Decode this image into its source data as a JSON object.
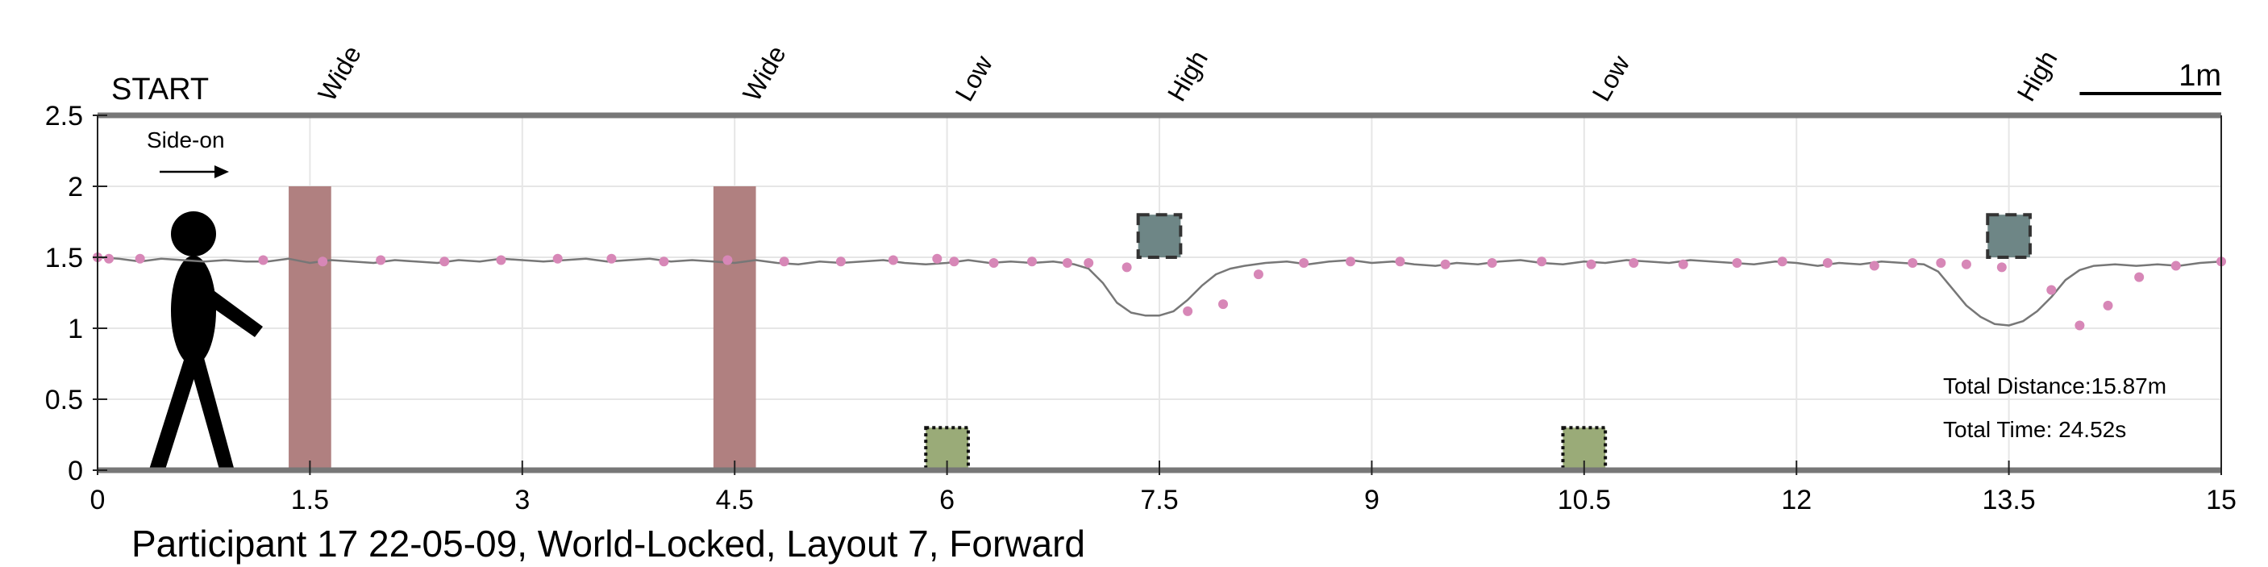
{
  "chart_data": {
    "type": "line",
    "caption": "Participant 17 22-05-09, World-Locked, Layout 7, Forward",
    "start_label": "START",
    "direction_label": "Side-on",
    "scale_bar_label": "1m",
    "scale_bar_length": 1,
    "xlim": [
      0,
      15
    ],
    "ylim": [
      0,
      2.5
    ],
    "xticks": [
      0,
      1.5,
      3,
      4.5,
      6,
      7.5,
      9,
      10.5,
      12,
      13.5,
      15
    ],
    "xtick_labels": [
      "0",
      "1.5",
      "3",
      "4.5",
      "6",
      "7.5",
      "9",
      "10.5",
      "12",
      "13.5",
      "15"
    ],
    "yticks": [
      0,
      0.5,
      1,
      1.5,
      2,
      2.5
    ],
    "ytick_labels": [
      "0",
      "0.5",
      "1",
      "1.5",
      "2",
      "2.5"
    ],
    "grid": true,
    "obstacle_labels": [
      {
        "x": 1.5,
        "text": "Wide"
      },
      {
        "x": 4.5,
        "text": "Wide"
      },
      {
        "x": 6.0,
        "text": "Low"
      },
      {
        "x": 7.5,
        "text": "High"
      },
      {
        "x": 10.5,
        "text": "Low"
      },
      {
        "x": 13.5,
        "text": "High"
      }
    ],
    "obstacles": [
      {
        "kind": "wide",
        "x0": 1.35,
        "x1": 1.65,
        "y0": 0,
        "y1": 2.0,
        "color": "#b08080"
      },
      {
        "kind": "wide",
        "x0": 4.35,
        "x1": 4.65,
        "y0": 0,
        "y1": 2.0,
        "color": "#b08080"
      },
      {
        "kind": "low",
        "x0": 5.85,
        "x1": 6.15,
        "y0": 0,
        "y1": 0.3,
        "color": "#9aab78"
      },
      {
        "kind": "high",
        "x0": 7.35,
        "x1": 7.65,
        "y0": 1.5,
        "y1": 1.8,
        "color": "#6e8686"
      },
      {
        "kind": "low",
        "x0": 10.35,
        "x1": 10.65,
        "y0": 0,
        "y1": 0.3,
        "color": "#9aab78"
      },
      {
        "kind": "high",
        "x0": 13.35,
        "x1": 13.65,
        "y0": 1.5,
        "y1": 1.8,
        "color": "#6e8686"
      }
    ],
    "series": [
      {
        "color": "#777777",
        "x": [
          0.0,
          0.15,
          0.3,
          0.45,
          0.6,
          0.75,
          0.9,
          1.05,
          1.2,
          1.35,
          1.5,
          1.65,
          1.8,
          1.95,
          2.1,
          2.25,
          2.4,
          2.55,
          2.7,
          2.85,
          3.0,
          3.15,
          3.3,
          3.45,
          3.6,
          3.75,
          3.9,
          4.05,
          4.2,
          4.35,
          4.5,
          4.65,
          4.8,
          4.95,
          5.1,
          5.25,
          5.4,
          5.55,
          5.7,
          5.85,
          6.0,
          6.15,
          6.3,
          6.45,
          6.6,
          6.75,
          6.9,
          7.0,
          7.1,
          7.2,
          7.3,
          7.4,
          7.5,
          7.6,
          7.7,
          7.8,
          7.9,
          8.0,
          8.1,
          8.25,
          8.4,
          8.55,
          8.7,
          8.85,
          9.0,
          9.15,
          9.3,
          9.45,
          9.6,
          9.75,
          9.9,
          10.05,
          10.2,
          10.35,
          10.5,
          10.65,
          10.8,
          10.95,
          11.1,
          11.25,
          11.4,
          11.55,
          11.7,
          11.85,
          12.0,
          12.15,
          12.3,
          12.45,
          12.6,
          12.75,
          12.9,
          13.0,
          13.1,
          13.2,
          13.3,
          13.4,
          13.5,
          13.6,
          13.7,
          13.8,
          13.9,
          14.0,
          14.1,
          14.25,
          14.4,
          14.55,
          14.7,
          14.85,
          15.0
        ],
        "y": [
          1.5,
          1.49,
          1.47,
          1.49,
          1.48,
          1.47,
          1.48,
          1.47,
          1.47,
          1.49,
          1.46,
          1.48,
          1.47,
          1.46,
          1.48,
          1.47,
          1.46,
          1.48,
          1.47,
          1.49,
          1.48,
          1.47,
          1.48,
          1.49,
          1.47,
          1.48,
          1.49,
          1.47,
          1.48,
          1.47,
          1.46,
          1.48,
          1.46,
          1.45,
          1.47,
          1.46,
          1.47,
          1.48,
          1.46,
          1.45,
          1.46,
          1.48,
          1.46,
          1.47,
          1.46,
          1.47,
          1.45,
          1.42,
          1.32,
          1.18,
          1.11,
          1.09,
          1.09,
          1.12,
          1.2,
          1.3,
          1.38,
          1.42,
          1.44,
          1.46,
          1.47,
          1.45,
          1.47,
          1.48,
          1.46,
          1.47,
          1.45,
          1.44,
          1.46,
          1.45,
          1.47,
          1.48,
          1.46,
          1.45,
          1.47,
          1.46,
          1.48,
          1.47,
          1.46,
          1.48,
          1.47,
          1.46,
          1.45,
          1.47,
          1.46,
          1.44,
          1.46,
          1.45,
          1.47,
          1.46,
          1.45,
          1.4,
          1.28,
          1.16,
          1.08,
          1.03,
          1.02,
          1.05,
          1.12,
          1.22,
          1.34,
          1.41,
          1.44,
          1.45,
          1.44,
          1.45,
          1.44,
          1.46,
          1.47
        ]
      }
    ],
    "markers": {
      "color": "#d787b7",
      "x": [
        0.0,
        0.08,
        0.3,
        1.17,
        1.59,
        2.0,
        2.45,
        2.85,
        3.25,
        3.63,
        4.0,
        4.45,
        4.85,
        5.25,
        5.62,
        5.93,
        6.05,
        6.33,
        6.6,
        6.85,
        7.0,
        7.27,
        7.7,
        7.95,
        8.2,
        8.52,
        8.85,
        9.2,
        9.52,
        9.85,
        10.2,
        10.55,
        10.85,
        11.2,
        11.58,
        11.9,
        12.22,
        12.55,
        12.82,
        13.02,
        13.2,
        13.45,
        13.8,
        14.0,
        14.2,
        14.42,
        14.68,
        15.0
      ],
      "y": [
        1.5,
        1.49,
        1.49,
        1.48,
        1.47,
        1.48,
        1.47,
        1.48,
        1.49,
        1.49,
        1.47,
        1.48,
        1.47,
        1.47,
        1.48,
        1.49,
        1.47,
        1.46,
        1.47,
        1.46,
        1.46,
        1.43,
        1.12,
        1.17,
        1.38,
        1.46,
        1.47,
        1.47,
        1.45,
        1.46,
        1.47,
        1.45,
        1.46,
        1.45,
        1.46,
        1.47,
        1.46,
        1.44,
        1.46,
        1.46,
        1.45,
        1.43,
        1.27,
        1.02,
        1.16,
        1.36,
        1.44,
        1.47
      ]
    },
    "annotations": {
      "total_distance": "Total Distance:15.87m",
      "total_time": "Total Time: 24.52s"
    }
  }
}
